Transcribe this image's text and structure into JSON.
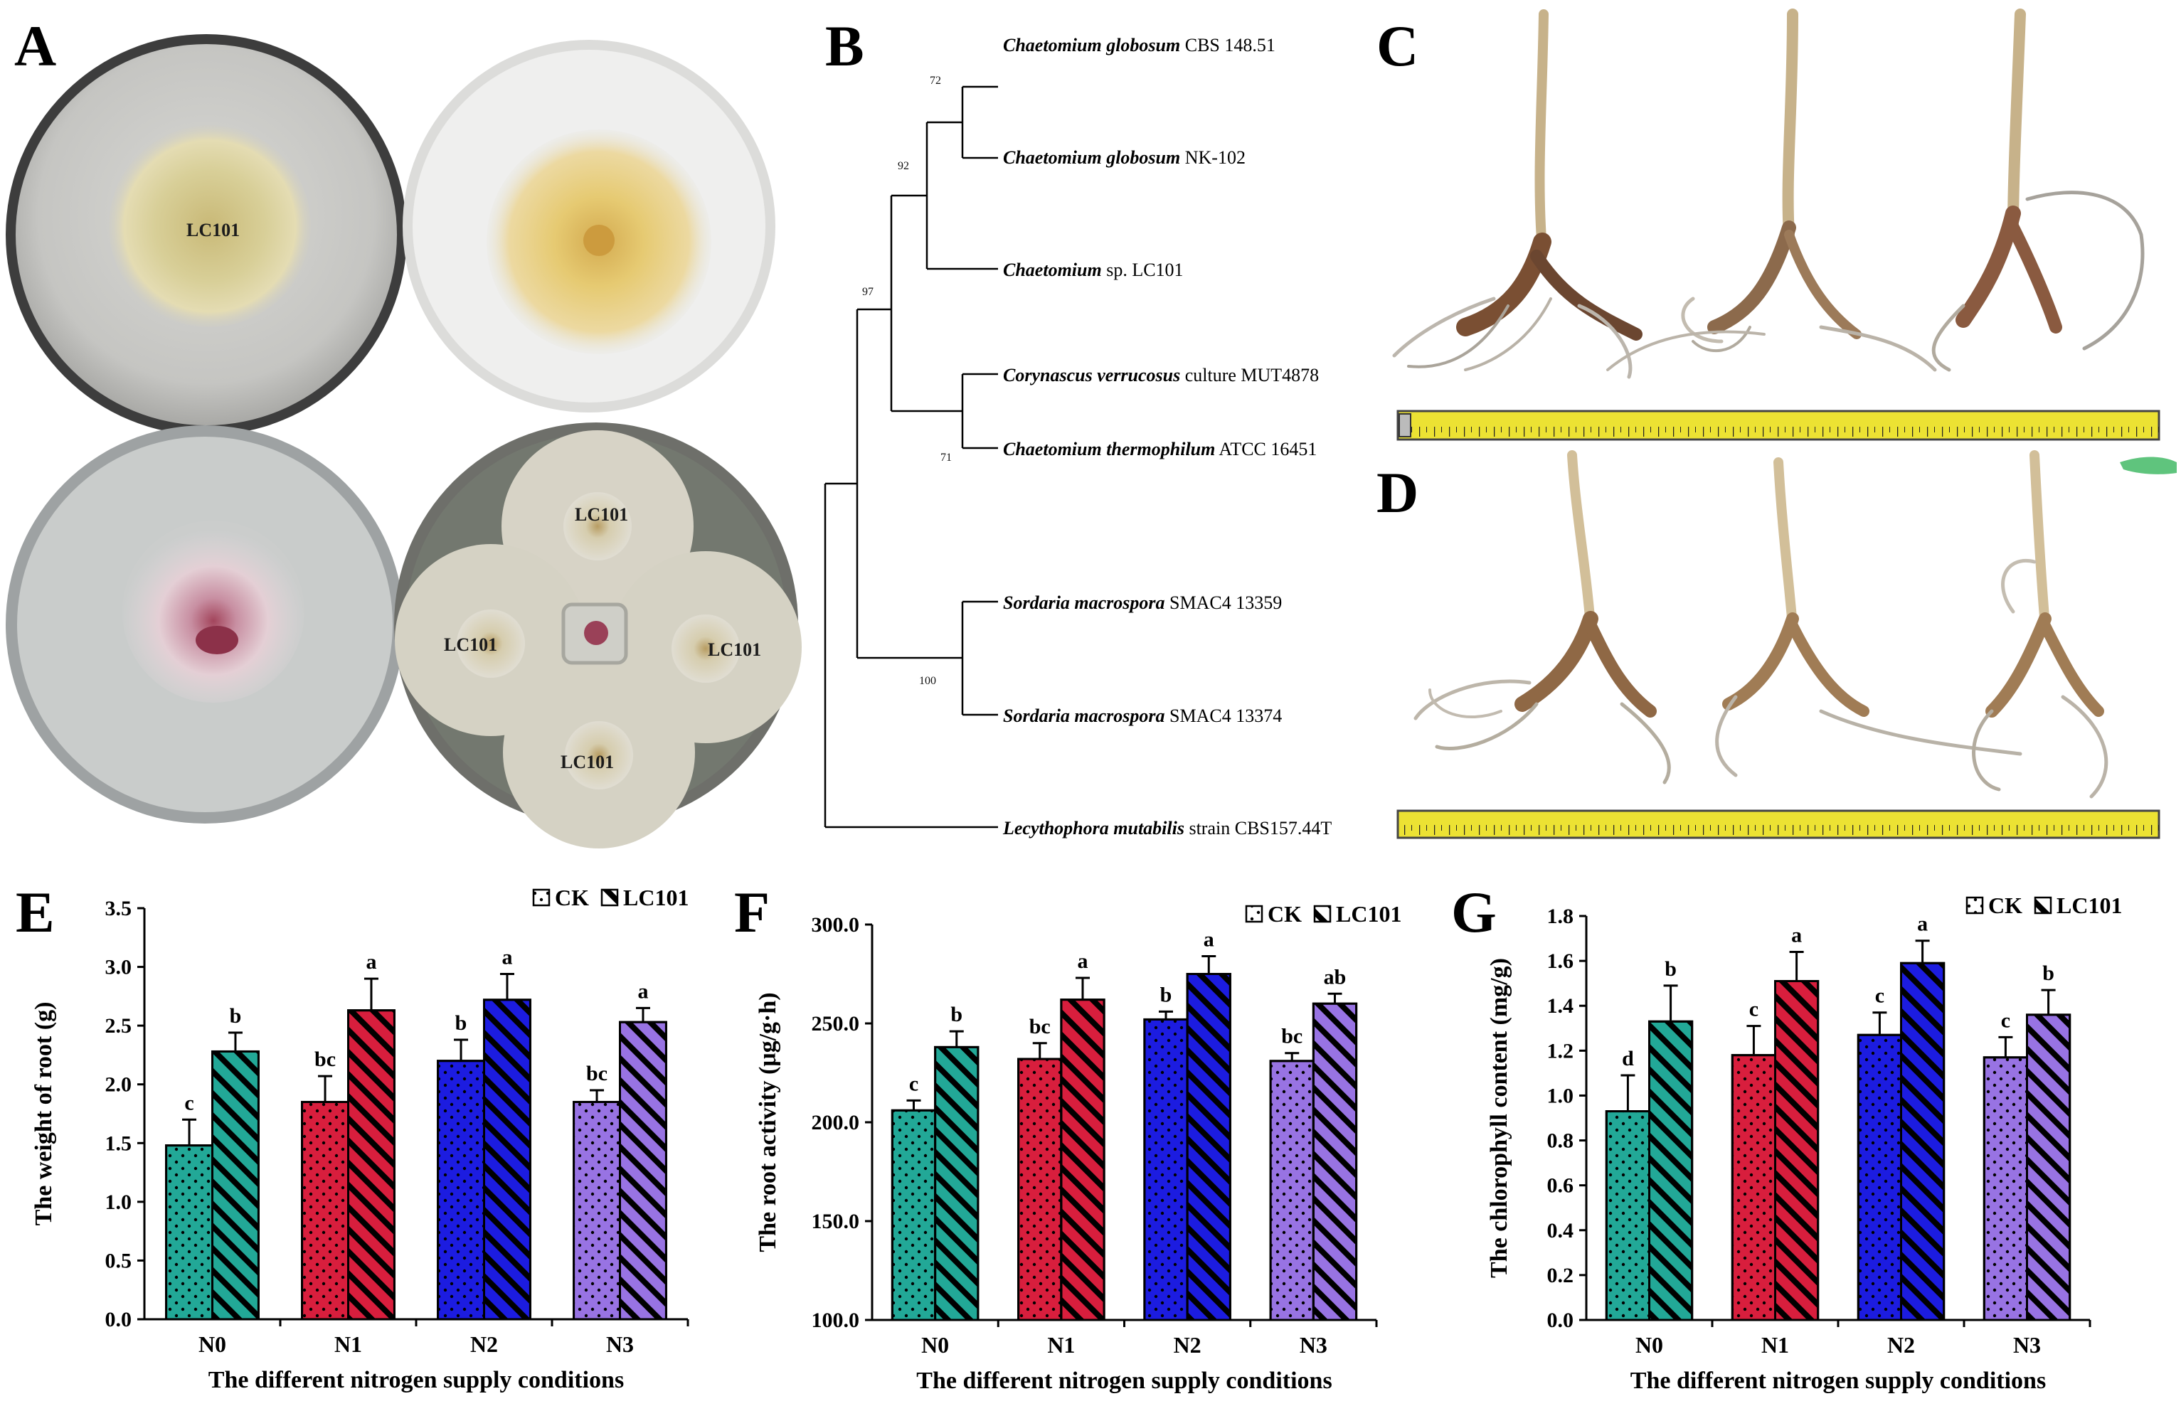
{
  "panel_letters": {
    "a": "A",
    "b": "B",
    "c": "C",
    "d": "D",
    "e": "E",
    "f": "F",
    "g": "G"
  },
  "plates": {
    "top_left_label": "LC101",
    "dual": {
      "top": "LC101",
      "left": "LC101",
      "right": "LC101",
      "bottom": "LC101"
    }
  },
  "tree": {
    "taxa": [
      {
        "genus": "Chaetomium globosum",
        "rest": " CBS 148.51"
      },
      {
        "genus": "Chaetomium globosum",
        "rest": " NK-102"
      },
      {
        "genus": "Chaetomium",
        "rest": " sp. LC101"
      },
      {
        "genus": "Corynascus verrucosus",
        "rest": " culture MUT4878"
      },
      {
        "genus": "Chaetomium thermophilum",
        "rest": " ATCC 16451"
      },
      {
        "genus": "Sordaria macrospora",
        "rest": " SMAC4 13359"
      },
      {
        "genus": "Sordaria macrospora",
        "rest": " SMAC4 13374"
      },
      {
        "genus": "Lecythophora mutabilis",
        "rest": " strain CBS157.44T"
      }
    ],
    "bootstrap": [
      "72",
      "92",
      "97",
      "71",
      "100"
    ]
  },
  "colors": {
    "N0": "#22a897",
    "N1": "#d81e3d",
    "N2": "#1c1ce0",
    "N3": "#9873e3"
  },
  "chart_data": [
    {
      "panel": "E",
      "type": "bar",
      "categories": [
        "N0",
        "N1",
        "N2",
        "N3"
      ],
      "xlabel": "The different nitrogen supply conditions",
      "ylabel": "The  weight of root (g)",
      "ylim": [
        0.0,
        3.5
      ],
      "yticks": [
        "0.0",
        "0.5",
        "1.0",
        "1.5",
        "2.0",
        "2.5",
        "3.0",
        "3.5"
      ],
      "series": [
        {
          "name": "CK",
          "values": [
            1.48,
            1.85,
            2.2,
            1.85
          ],
          "errors": [
            0.22,
            0.22,
            0.18,
            0.1
          ],
          "labels": [
            "c",
            "bc",
            "b",
            "bc"
          ]
        },
        {
          "name": "LC101",
          "values": [
            2.28,
            2.63,
            2.72,
            2.53
          ],
          "errors": [
            0.16,
            0.27,
            0.22,
            0.12
          ],
          "labels": [
            "b",
            "a",
            "a",
            "a"
          ]
        }
      ]
    },
    {
      "panel": "F",
      "type": "bar",
      "categories": [
        "N0",
        "N1",
        "N2",
        "N3"
      ],
      "xlabel": "The different nitrogen supply conditions",
      "ylabel": "The root activity (μg/g·h)",
      "ylim": [
        100.0,
        300.0
      ],
      "yticks": [
        "100.0",
        "150.0",
        "200.0",
        "250.0",
        "300.0"
      ],
      "series": [
        {
          "name": "CK",
          "values": [
            206,
            232,
            252,
            231
          ],
          "errors": [
            5,
            8,
            4,
            4
          ],
          "labels": [
            "c",
            "bc",
            "b",
            "bc"
          ]
        },
        {
          "name": "LC101",
          "values": [
            238,
            262,
            275,
            260
          ],
          "errors": [
            8,
            11,
            9,
            5
          ],
          "labels": [
            "b",
            "a",
            "a",
            "ab"
          ]
        }
      ]
    },
    {
      "panel": "G",
      "type": "bar",
      "categories": [
        "N0",
        "N1",
        "N2",
        "N3"
      ],
      "xlabel": "The different nitrogen supply conditions",
      "ylabel": "The chlorophyll content (mg/g)",
      "ylim": [
        0.0,
        1.8
      ],
      "yticks": [
        "0.0",
        "0.2",
        "0.4",
        "0.6",
        "0.8",
        "1.0",
        "1.2",
        "1.4",
        "1.6",
        "1.8"
      ],
      "series": [
        {
          "name": "CK",
          "values": [
            0.93,
            1.18,
            1.27,
            1.17
          ],
          "errors": [
            0.16,
            0.13,
            0.1,
            0.09
          ],
          "labels": [
            "d",
            "c",
            "c",
            "c"
          ]
        },
        {
          "name": "LC101",
          "values": [
            1.33,
            1.51,
            1.59,
            1.36
          ],
          "errors": [
            0.16,
            0.13,
            0.1,
            0.11
          ],
          "labels": [
            "b",
            "a",
            "a",
            "b"
          ]
        }
      ]
    }
  ]
}
